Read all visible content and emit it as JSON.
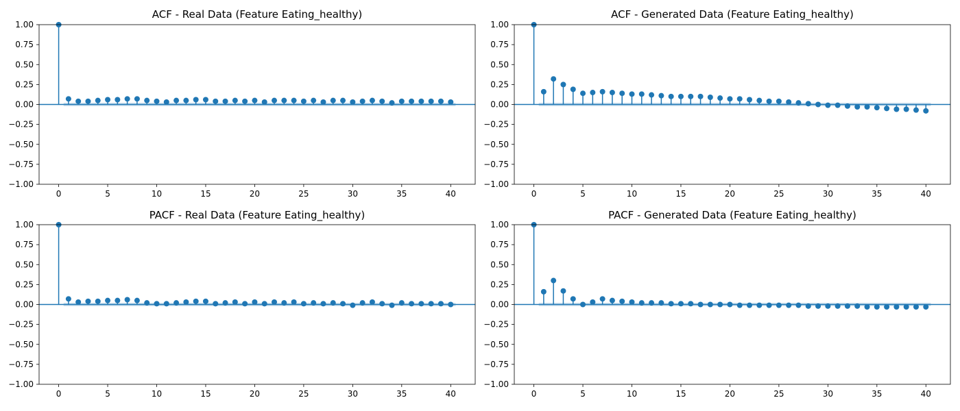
{
  "colors": {
    "series": "#1f77b4",
    "axis": "#000000",
    "background": "#ffffff"
  },
  "chart_data": [
    {
      "type": "stem",
      "title": "ACF - Real Data (Feature Eating_healthy)",
      "xlabel": "",
      "ylabel": "",
      "xlim": [
        -2,
        42.5
      ],
      "ylim": [
        -1.0,
        1.0
      ],
      "xticks": [
        0,
        5,
        10,
        15,
        20,
        25,
        30,
        35,
        40
      ],
      "xtick_labels": [
        "0",
        "5",
        "10",
        "15",
        "20",
        "25",
        "30",
        "35",
        "40"
      ],
      "yticks": [
        -1.0,
        -0.75,
        -0.5,
        -0.25,
        0.0,
        0.25,
        0.5,
        0.75,
        1.0
      ],
      "ytick_labels": [
        "−1.00",
        "−0.75",
        "−0.50",
        "−0.25",
        "0.00",
        "0.25",
        "0.50",
        "0.75",
        "1.00"
      ],
      "confidence_band": 0.02,
      "x": [
        0,
        1,
        2,
        3,
        4,
        5,
        6,
        7,
        8,
        9,
        10,
        11,
        12,
        13,
        14,
        15,
        16,
        17,
        18,
        19,
        20,
        21,
        22,
        23,
        24,
        25,
        26,
        27,
        28,
        29,
        30,
        31,
        32,
        33,
        34,
        35,
        36,
        37,
        38,
        39,
        40
      ],
      "values": [
        1.0,
        0.07,
        0.04,
        0.04,
        0.05,
        0.06,
        0.06,
        0.07,
        0.07,
        0.05,
        0.04,
        0.03,
        0.05,
        0.05,
        0.06,
        0.06,
        0.04,
        0.04,
        0.05,
        0.04,
        0.05,
        0.03,
        0.05,
        0.05,
        0.05,
        0.04,
        0.05,
        0.03,
        0.05,
        0.05,
        0.03,
        0.04,
        0.05,
        0.04,
        0.02,
        0.04,
        0.04,
        0.04,
        0.04,
        0.04,
        0.03
      ]
    },
    {
      "type": "stem",
      "title": "ACF - Generated Data (Feature Eating_healthy)",
      "xlabel": "",
      "ylabel": "",
      "xlim": [
        -2,
        42.5
      ],
      "ylim": [
        -1.0,
        1.0
      ],
      "xticks": [
        0,
        5,
        10,
        15,
        20,
        25,
        30,
        35,
        40
      ],
      "xtick_labels": [
        "0",
        "5",
        "10",
        "15",
        "20",
        "25",
        "30",
        "35",
        "40"
      ],
      "yticks": [
        -1.0,
        -0.75,
        -0.5,
        -0.25,
        0.0,
        0.25,
        0.5,
        0.75,
        1.0
      ],
      "ytick_labels": [
        "−1.00",
        "−0.75",
        "−0.50",
        "−0.25",
        "0.00",
        "0.25",
        "0.50",
        "0.75",
        "1.00"
      ],
      "confidence_band": 0.02,
      "x": [
        0,
        1,
        2,
        3,
        4,
        5,
        6,
        7,
        8,
        9,
        10,
        11,
        12,
        13,
        14,
        15,
        16,
        17,
        18,
        19,
        20,
        21,
        22,
        23,
        24,
        25,
        26,
        27,
        28,
        29,
        30,
        31,
        32,
        33,
        34,
        35,
        36,
        37,
        38,
        39,
        40
      ],
      "values": [
        1.0,
        0.16,
        0.32,
        0.25,
        0.19,
        0.14,
        0.15,
        0.16,
        0.15,
        0.14,
        0.13,
        0.13,
        0.12,
        0.11,
        0.1,
        0.1,
        0.1,
        0.1,
        0.09,
        0.08,
        0.07,
        0.07,
        0.06,
        0.05,
        0.04,
        0.04,
        0.03,
        0.02,
        0.01,
        0.0,
        -0.01,
        -0.01,
        -0.02,
        -0.03,
        -0.03,
        -0.04,
        -0.05,
        -0.06,
        -0.06,
        -0.07,
        -0.08
      ]
    },
    {
      "type": "stem",
      "title": "PACF - Real Data (Feature Eating_healthy)",
      "xlabel": "",
      "ylabel": "",
      "xlim": [
        -2,
        42.5
      ],
      "ylim": [
        -1.0,
        1.0
      ],
      "xticks": [
        0,
        5,
        10,
        15,
        20,
        25,
        30,
        35,
        40
      ],
      "xtick_labels": [
        "0",
        "5",
        "10",
        "15",
        "20",
        "25",
        "30",
        "35",
        "40"
      ],
      "yticks": [
        -1.0,
        -0.75,
        -0.5,
        -0.25,
        0.0,
        0.25,
        0.5,
        0.75,
        1.0
      ],
      "ytick_labels": [
        "−1.00",
        "−0.75",
        "−0.50",
        "−0.25",
        "0.00",
        "0.25",
        "0.50",
        "0.75",
        "1.00"
      ],
      "confidence_band": 0.02,
      "x": [
        0,
        1,
        2,
        3,
        4,
        5,
        6,
        7,
        8,
        9,
        10,
        11,
        12,
        13,
        14,
        15,
        16,
        17,
        18,
        19,
        20,
        21,
        22,
        23,
        24,
        25,
        26,
        27,
        28,
        29,
        30,
        31,
        32,
        33,
        34,
        35,
        36,
        37,
        38,
        39,
        40
      ],
      "values": [
        1.0,
        0.07,
        0.03,
        0.04,
        0.04,
        0.05,
        0.05,
        0.06,
        0.05,
        0.02,
        0.01,
        0.01,
        0.02,
        0.03,
        0.04,
        0.04,
        0.01,
        0.02,
        0.03,
        0.01,
        0.03,
        0.01,
        0.03,
        0.02,
        0.03,
        0.01,
        0.02,
        0.01,
        0.02,
        0.01,
        -0.01,
        0.02,
        0.03,
        0.01,
        -0.01,
        0.02,
        0.01,
        0.01,
        0.01,
        0.01,
        0.0
      ]
    },
    {
      "type": "stem",
      "title": "PACF - Generated Data (Feature Eating_healthy)",
      "xlabel": "",
      "ylabel": "",
      "xlim": [
        -2,
        42.5
      ],
      "ylim": [
        -1.0,
        1.0
      ],
      "xticks": [
        0,
        5,
        10,
        15,
        20,
        25,
        30,
        35,
        40
      ],
      "xtick_labels": [
        "0",
        "5",
        "10",
        "15",
        "20",
        "25",
        "30",
        "35",
        "40"
      ],
      "yticks": [
        -1.0,
        -0.75,
        -0.5,
        -0.25,
        0.0,
        0.25,
        0.5,
        0.75,
        1.0
      ],
      "ytick_labels": [
        "−1.00",
        "−0.75",
        "−0.50",
        "−0.25",
        "0.00",
        "0.25",
        "0.50",
        "0.75",
        "1.00"
      ],
      "confidence_band": 0.02,
      "x": [
        0,
        1,
        2,
        3,
        4,
        5,
        6,
        7,
        8,
        9,
        10,
        11,
        12,
        13,
        14,
        15,
        16,
        17,
        18,
        19,
        20,
        21,
        22,
        23,
        24,
        25,
        26,
        27,
        28,
        29,
        30,
        31,
        32,
        33,
        34,
        35,
        36,
        37,
        38,
        39,
        40
      ],
      "values": [
        1.0,
        0.16,
        0.3,
        0.17,
        0.07,
        0.0,
        0.03,
        0.07,
        0.05,
        0.04,
        0.03,
        0.02,
        0.02,
        0.02,
        0.01,
        0.01,
        0.01,
        0.0,
        0.0,
        0.0,
        0.0,
        -0.01,
        -0.01,
        -0.01,
        -0.01,
        -0.01,
        -0.01,
        -0.01,
        -0.02,
        -0.02,
        -0.02,
        -0.02,
        -0.02,
        -0.02,
        -0.03,
        -0.03,
        -0.03,
        -0.03,
        -0.03,
        -0.03,
        -0.03
      ]
    }
  ]
}
